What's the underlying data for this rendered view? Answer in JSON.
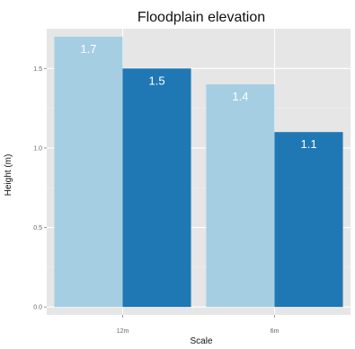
{
  "chart_data": {
    "type": "bar",
    "title": "Floodplain elevation",
    "xlabel": "Scale",
    "ylabel": "Height (m)",
    "categories": [
      "12m",
      "6m"
    ],
    "series": [
      {
        "values": [
          1.7,
          1.4
        ],
        "labels": [
          "1.7",
          "1.4"
        ]
      },
      {
        "values": [
          1.5,
          1.1
        ],
        "labels": [
          "1.5",
          "1.1"
        ]
      }
    ],
    "yticks": [
      0.0,
      0.5,
      1.0,
      1.5
    ],
    "ytick_labels": [
      "0.0",
      "0.5",
      "1.0",
      "1.5"
    ],
    "ylim": [
      -0.05,
      1.75
    ],
    "grid": true,
    "legend": "none",
    "colors": {
      "panel_background": "#E6E6E6",
      "grid_major": "#FFFFFF",
      "grid_minor": "#F0F0F0",
      "series": [
        "#A6CEE3",
        "#1F78B4"
      ]
    }
  }
}
